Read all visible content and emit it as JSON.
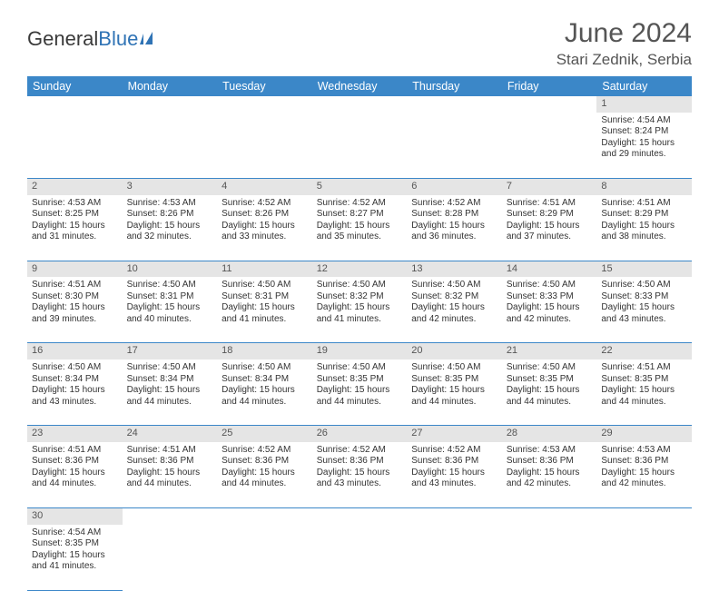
{
  "logo": {
    "text1": "General",
    "text2": "Blue"
  },
  "title": "June 2024",
  "location": "Stari Zednik, Serbia",
  "headers": [
    "Sunday",
    "Monday",
    "Tuesday",
    "Wednesday",
    "Thursday",
    "Friday",
    "Saturday"
  ],
  "colors": {
    "header_bg": "#3b87c8",
    "header_text": "#ffffff",
    "daynum_bg": "#e5e5e5",
    "border": "#3b87c8",
    "logo_blue": "#2f73b5"
  },
  "weeks": [
    [
      null,
      null,
      null,
      null,
      null,
      null,
      {
        "n": "1",
        "sr": "4:54 AM",
        "ss": "8:24 PM",
        "dl": "15 hours and 29 minutes."
      }
    ],
    [
      {
        "n": "2",
        "sr": "4:53 AM",
        "ss": "8:25 PM",
        "dl": "15 hours and 31 minutes."
      },
      {
        "n": "3",
        "sr": "4:53 AM",
        "ss": "8:26 PM",
        "dl": "15 hours and 32 minutes."
      },
      {
        "n": "4",
        "sr": "4:52 AM",
        "ss": "8:26 PM",
        "dl": "15 hours and 33 minutes."
      },
      {
        "n": "5",
        "sr": "4:52 AM",
        "ss": "8:27 PM",
        "dl": "15 hours and 35 minutes."
      },
      {
        "n": "6",
        "sr": "4:52 AM",
        "ss": "8:28 PM",
        "dl": "15 hours and 36 minutes."
      },
      {
        "n": "7",
        "sr": "4:51 AM",
        "ss": "8:29 PM",
        "dl": "15 hours and 37 minutes."
      },
      {
        "n": "8",
        "sr": "4:51 AM",
        "ss": "8:29 PM",
        "dl": "15 hours and 38 minutes."
      }
    ],
    [
      {
        "n": "9",
        "sr": "4:51 AM",
        "ss": "8:30 PM",
        "dl": "15 hours and 39 minutes."
      },
      {
        "n": "10",
        "sr": "4:50 AM",
        "ss": "8:31 PM",
        "dl": "15 hours and 40 minutes."
      },
      {
        "n": "11",
        "sr": "4:50 AM",
        "ss": "8:31 PM",
        "dl": "15 hours and 41 minutes."
      },
      {
        "n": "12",
        "sr": "4:50 AM",
        "ss": "8:32 PM",
        "dl": "15 hours and 41 minutes."
      },
      {
        "n": "13",
        "sr": "4:50 AM",
        "ss": "8:32 PM",
        "dl": "15 hours and 42 minutes."
      },
      {
        "n": "14",
        "sr": "4:50 AM",
        "ss": "8:33 PM",
        "dl": "15 hours and 42 minutes."
      },
      {
        "n": "15",
        "sr": "4:50 AM",
        "ss": "8:33 PM",
        "dl": "15 hours and 43 minutes."
      }
    ],
    [
      {
        "n": "16",
        "sr": "4:50 AM",
        "ss": "8:34 PM",
        "dl": "15 hours and 43 minutes."
      },
      {
        "n": "17",
        "sr": "4:50 AM",
        "ss": "8:34 PM",
        "dl": "15 hours and 44 minutes."
      },
      {
        "n": "18",
        "sr": "4:50 AM",
        "ss": "8:34 PM",
        "dl": "15 hours and 44 minutes."
      },
      {
        "n": "19",
        "sr": "4:50 AM",
        "ss": "8:35 PM",
        "dl": "15 hours and 44 minutes."
      },
      {
        "n": "20",
        "sr": "4:50 AM",
        "ss": "8:35 PM",
        "dl": "15 hours and 44 minutes."
      },
      {
        "n": "21",
        "sr": "4:50 AM",
        "ss": "8:35 PM",
        "dl": "15 hours and 44 minutes."
      },
      {
        "n": "22",
        "sr": "4:51 AM",
        "ss": "8:35 PM",
        "dl": "15 hours and 44 minutes."
      }
    ],
    [
      {
        "n": "23",
        "sr": "4:51 AM",
        "ss": "8:36 PM",
        "dl": "15 hours and 44 minutes."
      },
      {
        "n": "24",
        "sr": "4:51 AM",
        "ss": "8:36 PM",
        "dl": "15 hours and 44 minutes."
      },
      {
        "n": "25",
        "sr": "4:52 AM",
        "ss": "8:36 PM",
        "dl": "15 hours and 44 minutes."
      },
      {
        "n": "26",
        "sr": "4:52 AM",
        "ss": "8:36 PM",
        "dl": "15 hours and 43 minutes."
      },
      {
        "n": "27",
        "sr": "4:52 AM",
        "ss": "8:36 PM",
        "dl": "15 hours and 43 minutes."
      },
      {
        "n": "28",
        "sr": "4:53 AM",
        "ss": "8:36 PM",
        "dl": "15 hours and 42 minutes."
      },
      {
        "n": "29",
        "sr": "4:53 AM",
        "ss": "8:36 PM",
        "dl": "15 hours and 42 minutes."
      }
    ],
    [
      {
        "n": "30",
        "sr": "4:54 AM",
        "ss": "8:35 PM",
        "dl": "15 hours and 41 minutes."
      },
      null,
      null,
      null,
      null,
      null,
      null
    ]
  ],
  "labels": {
    "sunrise": "Sunrise:",
    "sunset": "Sunset:",
    "daylight": "Daylight:"
  }
}
